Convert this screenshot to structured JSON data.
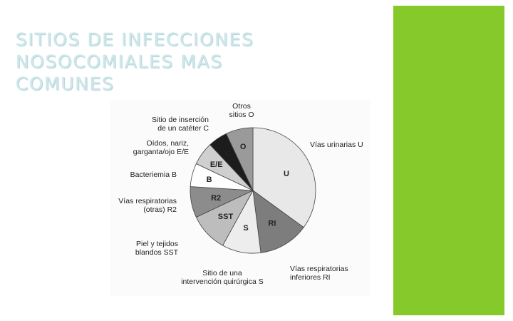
{
  "slide": {
    "title_lines": [
      "SITIOS DE INFECCIONES",
      "NOSOCOMIALES MAS",
      "COMUNES"
    ],
    "accent_color": "#86c92a",
    "title_color": "#cfe6ea"
  },
  "chart_data": {
    "type": "pie",
    "title": "",
    "start_angle_deg": 0,
    "direction": "clockwise",
    "slices": [
      {
        "code": "U",
        "label": [
          "Vías urinarias U"
        ],
        "value": 35,
        "color": "#e8e8e8",
        "code_color": "#222222"
      },
      {
        "code": "RI",
        "label": [
          "Vías respiratorias",
          "inferiores RI"
        ],
        "value": 13,
        "color": "#7d7d7d",
        "code_color": "#ffffff"
      },
      {
        "code": "S",
        "label": [
          "Sitio de una",
          "intervención quirúrgica S"
        ],
        "value": 10,
        "color": "#ededed",
        "code_color": "#222222"
      },
      {
        "code": "SST",
        "label": [
          "Piel y tejidos",
          "blandos SST"
        ],
        "value": 10,
        "color": "#bdbdbd",
        "code_color": "#222222"
      },
      {
        "code": "R2",
        "label": [
          "Vías respiratorias",
          "(otras) R2"
        ],
        "value": 8,
        "color": "#8c8c8c",
        "code_color": "#222222"
      },
      {
        "code": "B",
        "label": [
          "Bacteriemia B"
        ],
        "value": 6,
        "color": "#ffffff",
        "code_color": "#222222"
      },
      {
        "code": "E/E",
        "label": [
          "Oídos, nariz,",
          "garganta/ojo E/E"
        ],
        "value": 6,
        "color": "#cfcfcf",
        "code_color": "#222222"
      },
      {
        "code": "C",
        "label": [
          "Sitio de inserción",
          "de un catéter C"
        ],
        "value": 5,
        "color": "#1c1c1c",
        "code_color": "#ffffff"
      },
      {
        "code": "O",
        "label": [
          "Otros",
          "sitios O"
        ],
        "value": 7,
        "color": "#9a9a9a",
        "code_color": "#222222"
      }
    ]
  }
}
